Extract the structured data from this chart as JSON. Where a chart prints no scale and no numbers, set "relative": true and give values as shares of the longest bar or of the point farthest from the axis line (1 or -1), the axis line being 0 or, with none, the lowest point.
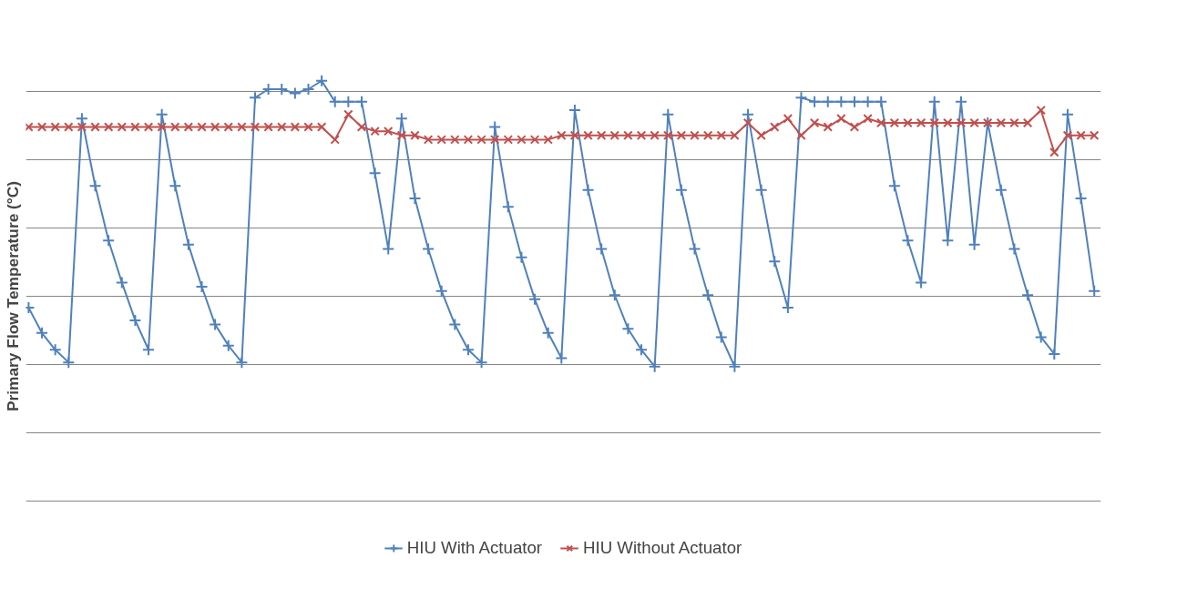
{
  "chart_data": {
    "type": "line",
    "ylabel": "Primary Flow Temperature (°C)",
    "relative": true,
    "grid": "y",
    "legend": "bottom",
    "line_style": "solid",
    "categories": [
      null,
      null,
      null,
      null,
      null,
      null,
      null,
      null,
      null,
      null,
      null,
      null,
      null,
      null,
      null,
      null,
      null,
      null,
      null,
      null,
      null,
      null,
      null,
      null,
      null,
      null,
      null,
      null,
      null,
      null,
      null,
      null,
      null,
      null,
      null,
      null,
      null,
      null,
      null,
      null,
      null,
      null,
      null,
      null,
      null,
      null,
      null,
      null,
      null,
      null,
      null,
      null,
      null,
      null,
      null,
      null,
      null,
      null,
      null,
      null,
      null,
      null,
      null,
      null,
      null,
      null,
      null,
      null,
      null,
      null,
      null,
      null,
      null,
      null,
      null,
      null,
      null,
      null,
      null,
      null,
      null
    ],
    "series": [
      {
        "name": "HIU With Actuator",
        "color": "#4f81bd",
        "marker": "cross",
        "values": [
          0.46,
          0.4,
          0.36,
          0.33,
          0.91,
          0.75,
          0.62,
          0.52,
          0.43,
          0.36,
          0.92,
          0.75,
          0.61,
          0.51,
          0.42,
          0.37,
          0.33,
          0.96,
          0.98,
          0.98,
          0.97,
          0.98,
          1.0,
          0.95,
          0.95,
          0.95,
          0.78,
          0.6,
          0.91,
          0.72,
          0.6,
          0.5,
          0.42,
          0.36,
          0.33,
          0.89,
          0.7,
          0.58,
          0.48,
          0.4,
          0.34,
          0.93,
          0.74,
          0.6,
          0.49,
          0.41,
          0.36,
          0.32,
          0.92,
          0.74,
          0.6,
          0.49,
          0.39,
          0.32,
          0.92,
          0.74,
          0.57,
          0.46,
          0.96,
          0.95,
          0.95,
          0.95,
          0.95,
          0.95,
          0.95,
          0.75,
          0.62,
          0.52,
          0.95,
          0.62,
          0.95,
          0.61,
          0.9,
          0.74,
          0.6,
          0.49,
          0.39,
          0.35,
          0.92,
          0.72,
          0.5
        ]
      },
      {
        "name": "HIU Without Actuator",
        "color": "#c0504d",
        "marker": "x",
        "values": [
          0.89,
          0.89,
          0.89,
          0.89,
          0.89,
          0.89,
          0.89,
          0.89,
          0.89,
          0.89,
          0.89,
          0.89,
          0.89,
          0.89,
          0.89,
          0.89,
          0.89,
          0.89,
          0.89,
          0.89,
          0.89,
          0.89,
          0.89,
          0.86,
          0.92,
          0.89,
          0.88,
          0.88,
          0.87,
          0.87,
          0.86,
          0.86,
          0.86,
          0.86,
          0.86,
          0.86,
          0.86,
          0.86,
          0.86,
          0.86,
          0.87,
          0.87,
          0.87,
          0.87,
          0.87,
          0.87,
          0.87,
          0.87,
          0.87,
          0.87,
          0.87,
          0.87,
          0.87,
          0.87,
          0.9,
          0.87,
          0.89,
          0.91,
          0.87,
          0.9,
          0.89,
          0.91,
          0.89,
          0.91,
          0.9,
          0.9,
          0.9,
          0.9,
          0.9,
          0.9,
          0.9,
          0.9,
          0.9,
          0.9,
          0.9,
          0.9,
          0.93,
          0.83,
          0.87,
          0.87,
          0.87
        ]
      }
    ]
  }
}
